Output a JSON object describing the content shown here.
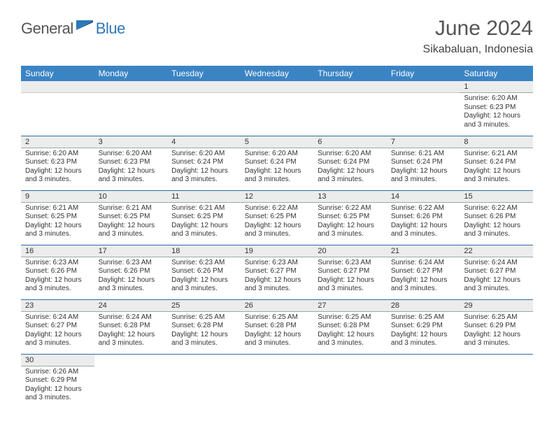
{
  "logo": {
    "general": "General",
    "blue": "Blue",
    "flag_color": "#2e77b8"
  },
  "title": "June 2024",
  "location": "Sikabaluan, Indonesia",
  "weekdays": [
    "Sunday",
    "Monday",
    "Tuesday",
    "Wednesday",
    "Thursday",
    "Friday",
    "Saturday"
  ],
  "colors": {
    "header_bg": "#3b84c4",
    "header_text": "#ffffff",
    "daynum_bg": "#ececec",
    "row_border": "#2e6da4",
    "text": "#333333",
    "title_text": "#555555"
  },
  "weeks": [
    [
      null,
      null,
      null,
      null,
      null,
      null,
      {
        "n": "1",
        "sunrise": "Sunrise: 6:20 AM",
        "sunset": "Sunset: 6:23 PM",
        "daylight1": "Daylight: 12 hours",
        "daylight2": "and 3 minutes."
      }
    ],
    [
      {
        "n": "2",
        "sunrise": "Sunrise: 6:20 AM",
        "sunset": "Sunset: 6:23 PM",
        "daylight1": "Daylight: 12 hours",
        "daylight2": "and 3 minutes."
      },
      {
        "n": "3",
        "sunrise": "Sunrise: 6:20 AM",
        "sunset": "Sunset: 6:23 PM",
        "daylight1": "Daylight: 12 hours",
        "daylight2": "and 3 minutes."
      },
      {
        "n": "4",
        "sunrise": "Sunrise: 6:20 AM",
        "sunset": "Sunset: 6:24 PM",
        "daylight1": "Daylight: 12 hours",
        "daylight2": "and 3 minutes."
      },
      {
        "n": "5",
        "sunrise": "Sunrise: 6:20 AM",
        "sunset": "Sunset: 6:24 PM",
        "daylight1": "Daylight: 12 hours",
        "daylight2": "and 3 minutes."
      },
      {
        "n": "6",
        "sunrise": "Sunrise: 6:20 AM",
        "sunset": "Sunset: 6:24 PM",
        "daylight1": "Daylight: 12 hours",
        "daylight2": "and 3 minutes."
      },
      {
        "n": "7",
        "sunrise": "Sunrise: 6:21 AM",
        "sunset": "Sunset: 6:24 PM",
        "daylight1": "Daylight: 12 hours",
        "daylight2": "and 3 minutes."
      },
      {
        "n": "8",
        "sunrise": "Sunrise: 6:21 AM",
        "sunset": "Sunset: 6:24 PM",
        "daylight1": "Daylight: 12 hours",
        "daylight2": "and 3 minutes."
      }
    ],
    [
      {
        "n": "9",
        "sunrise": "Sunrise: 6:21 AM",
        "sunset": "Sunset: 6:25 PM",
        "daylight1": "Daylight: 12 hours",
        "daylight2": "and 3 minutes."
      },
      {
        "n": "10",
        "sunrise": "Sunrise: 6:21 AM",
        "sunset": "Sunset: 6:25 PM",
        "daylight1": "Daylight: 12 hours",
        "daylight2": "and 3 minutes."
      },
      {
        "n": "11",
        "sunrise": "Sunrise: 6:21 AM",
        "sunset": "Sunset: 6:25 PM",
        "daylight1": "Daylight: 12 hours",
        "daylight2": "and 3 minutes."
      },
      {
        "n": "12",
        "sunrise": "Sunrise: 6:22 AM",
        "sunset": "Sunset: 6:25 PM",
        "daylight1": "Daylight: 12 hours",
        "daylight2": "and 3 minutes."
      },
      {
        "n": "13",
        "sunrise": "Sunrise: 6:22 AM",
        "sunset": "Sunset: 6:25 PM",
        "daylight1": "Daylight: 12 hours",
        "daylight2": "and 3 minutes."
      },
      {
        "n": "14",
        "sunrise": "Sunrise: 6:22 AM",
        "sunset": "Sunset: 6:26 PM",
        "daylight1": "Daylight: 12 hours",
        "daylight2": "and 3 minutes."
      },
      {
        "n": "15",
        "sunrise": "Sunrise: 6:22 AM",
        "sunset": "Sunset: 6:26 PM",
        "daylight1": "Daylight: 12 hours",
        "daylight2": "and 3 minutes."
      }
    ],
    [
      {
        "n": "16",
        "sunrise": "Sunrise: 6:23 AM",
        "sunset": "Sunset: 6:26 PM",
        "daylight1": "Daylight: 12 hours",
        "daylight2": "and 3 minutes."
      },
      {
        "n": "17",
        "sunrise": "Sunrise: 6:23 AM",
        "sunset": "Sunset: 6:26 PM",
        "daylight1": "Daylight: 12 hours",
        "daylight2": "and 3 minutes."
      },
      {
        "n": "18",
        "sunrise": "Sunrise: 6:23 AM",
        "sunset": "Sunset: 6:26 PM",
        "daylight1": "Daylight: 12 hours",
        "daylight2": "and 3 minutes."
      },
      {
        "n": "19",
        "sunrise": "Sunrise: 6:23 AM",
        "sunset": "Sunset: 6:27 PM",
        "daylight1": "Daylight: 12 hours",
        "daylight2": "and 3 minutes."
      },
      {
        "n": "20",
        "sunrise": "Sunrise: 6:23 AM",
        "sunset": "Sunset: 6:27 PM",
        "daylight1": "Daylight: 12 hours",
        "daylight2": "and 3 minutes."
      },
      {
        "n": "21",
        "sunrise": "Sunrise: 6:24 AM",
        "sunset": "Sunset: 6:27 PM",
        "daylight1": "Daylight: 12 hours",
        "daylight2": "and 3 minutes."
      },
      {
        "n": "22",
        "sunrise": "Sunrise: 6:24 AM",
        "sunset": "Sunset: 6:27 PM",
        "daylight1": "Daylight: 12 hours",
        "daylight2": "and 3 minutes."
      }
    ],
    [
      {
        "n": "23",
        "sunrise": "Sunrise: 6:24 AM",
        "sunset": "Sunset: 6:27 PM",
        "daylight1": "Daylight: 12 hours",
        "daylight2": "and 3 minutes."
      },
      {
        "n": "24",
        "sunrise": "Sunrise: 6:24 AM",
        "sunset": "Sunset: 6:28 PM",
        "daylight1": "Daylight: 12 hours",
        "daylight2": "and 3 minutes."
      },
      {
        "n": "25",
        "sunrise": "Sunrise: 6:25 AM",
        "sunset": "Sunset: 6:28 PM",
        "daylight1": "Daylight: 12 hours",
        "daylight2": "and 3 minutes."
      },
      {
        "n": "26",
        "sunrise": "Sunrise: 6:25 AM",
        "sunset": "Sunset: 6:28 PM",
        "daylight1": "Daylight: 12 hours",
        "daylight2": "and 3 minutes."
      },
      {
        "n": "27",
        "sunrise": "Sunrise: 6:25 AM",
        "sunset": "Sunset: 6:28 PM",
        "daylight1": "Daylight: 12 hours",
        "daylight2": "and 3 minutes."
      },
      {
        "n": "28",
        "sunrise": "Sunrise: 6:25 AM",
        "sunset": "Sunset: 6:29 PM",
        "daylight1": "Daylight: 12 hours",
        "daylight2": "and 3 minutes."
      },
      {
        "n": "29",
        "sunrise": "Sunrise: 6:25 AM",
        "sunset": "Sunset: 6:29 PM",
        "daylight1": "Daylight: 12 hours",
        "daylight2": "and 3 minutes."
      }
    ],
    [
      {
        "n": "30",
        "sunrise": "Sunrise: 6:26 AM",
        "sunset": "Sunset: 6:29 PM",
        "daylight1": "Daylight: 12 hours",
        "daylight2": "and 3 minutes."
      },
      null,
      null,
      null,
      null,
      null,
      null
    ]
  ]
}
